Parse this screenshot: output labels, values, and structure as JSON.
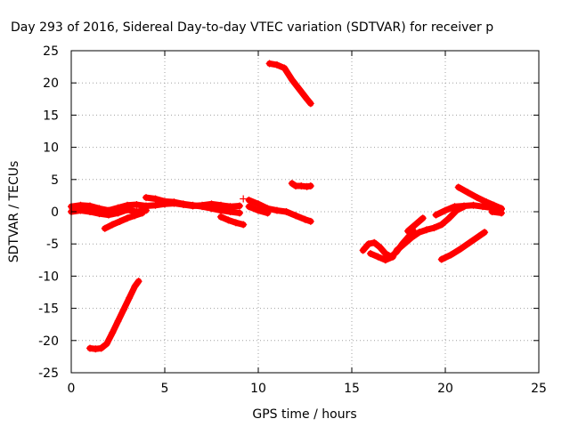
{
  "chart_data": {
    "type": "scatter",
    "title": "Day 293 of 2016, Sidereal Day-to-day VTEC variation (SDTVAR) for receiver p",
    "xlabel": "GPS time / hours",
    "ylabel": "SDTVAR / TECUs",
    "xlim": [
      0,
      25
    ],
    "ylim": [
      -25,
      25
    ],
    "xticks": [
      0,
      5,
      10,
      15,
      20,
      25
    ],
    "yticks": [
      25,
      20,
      15,
      10,
      5,
      0,
      -5,
      -10,
      -15,
      -20,
      -25
    ],
    "grid": true,
    "legend": "none",
    "series_color": "#ff0000",
    "marker": "+",
    "tracks": [
      {
        "name": "track-1",
        "x": [
          0.0,
          0.5,
          1.0,
          1.5,
          2.0,
          2.5,
          3.0,
          3.5,
          4.0,
          4.5,
          5.0,
          5.5,
          6.0,
          6.5,
          7.0,
          7.5,
          8.0,
          8.5,
          9.0
        ],
        "y": [
          0.8,
          1.0,
          0.9,
          0.5,
          0.2,
          0.6,
          1.0,
          1.1,
          0.9,
          1.0,
          1.2,
          1.3,
          1.1,
          0.9,
          1.0,
          1.2,
          1.0,
          0.8,
          0.9
        ]
      },
      {
        "name": "track-2",
        "x": [
          0.0,
          0.5,
          1.0,
          1.5,
          2.0,
          2.5,
          3.0,
          3.5,
          4.0
        ],
        "y": [
          0.0,
          0.2,
          0.0,
          -0.3,
          -0.5,
          -0.2,
          0.3,
          0.0,
          0.2
        ]
      },
      {
        "name": "track-3",
        "x": [
          1.0,
          1.3,
          1.6,
          1.9,
          2.2,
          2.5,
          2.8,
          3.1,
          3.4,
          3.6
        ],
        "y": [
          -21.2,
          -21.3,
          -21.2,
          -20.5,
          -18.8,
          -17.0,
          -15.2,
          -13.4,
          -11.6,
          -10.8
        ]
      },
      {
        "name": "track-4",
        "x": [
          1.8,
          2.2,
          2.6,
          3.0,
          3.4,
          3.8
        ],
        "y": [
          -2.6,
          -2.0,
          -1.5,
          -1.0,
          -0.6,
          -0.2
        ]
      },
      {
        "name": "track-5",
        "x": [
          4.0,
          4.5,
          5.0,
          5.5,
          6.0,
          6.5,
          7.0,
          7.5,
          8.0,
          8.5,
          9.0
        ],
        "y": [
          2.2,
          2.0,
          1.6,
          1.5,
          1.2,
          1.0,
          0.8,
          0.5,
          0.2,
          0.0,
          -0.2
        ]
      },
      {
        "name": "track-6",
        "x": [
          8.0,
          8.4,
          8.8,
          9.2
        ],
        "y": [
          -0.8,
          -1.3,
          -1.7,
          -2.0
        ]
      },
      {
        "name": "track-7",
        "x": [
          9.2
        ],
        "y": [
          2.0
        ]
      },
      {
        "name": "track-8",
        "x": [
          9.5,
          10.0,
          10.5,
          11.0,
          11.5,
          12.0,
          12.5,
          12.8
        ],
        "y": [
          1.8,
          1.2,
          0.5,
          0.2,
          0.0,
          -0.6,
          -1.2,
          -1.5
        ]
      },
      {
        "name": "track-9",
        "x": [
          9.5,
          10.0,
          10.5
        ],
        "y": [
          0.8,
          0.2,
          -0.2
        ]
      },
      {
        "name": "track-10",
        "x": [
          10.6,
          11.0,
          11.4,
          11.8,
          12.2,
          12.6,
          12.8
        ],
        "y": [
          23.0,
          22.8,
          22.3,
          20.5,
          19.0,
          17.5,
          16.8
        ]
      },
      {
        "name": "track-11",
        "x": [
          11.8,
          12.0,
          12.3,
          12.6,
          12.8
        ],
        "y": [
          4.4,
          4.0,
          4.0,
          3.9,
          4.0
        ]
      },
      {
        "name": "track-12",
        "x": [
          15.6,
          15.9,
          16.2,
          16.5,
          16.8,
          17.1,
          17.4,
          17.7,
          18.0,
          18.3
        ],
        "y": [
          -6.0,
          -5.0,
          -4.8,
          -5.5,
          -6.5,
          -7.0,
          -6.2,
          -5.0,
          -4.0,
          -3.0
        ]
      },
      {
        "name": "track-13",
        "x": [
          16.0,
          16.4,
          16.8,
          17.2
        ],
        "y": [
          -6.5,
          -7.0,
          -7.5,
          -7.0
        ]
      },
      {
        "name": "track-14",
        "x": [
          17.4,
          17.8,
          18.2,
          18.6,
          19.0,
          19.4,
          19.8,
          20.2,
          20.6,
          21.0
        ],
        "y": [
          -6.0,
          -5.0,
          -4.0,
          -3.2,
          -2.8,
          -2.5,
          -2.0,
          -1.0,
          0.2,
          0.8
        ]
      },
      {
        "name": "track-15",
        "x": [
          18.0,
          18.4,
          18.8
        ],
        "y": [
          -3.0,
          -2.0,
          -1.0
        ]
      },
      {
        "name": "track-16",
        "x": [
          19.5,
          20.0,
          20.5,
          21.0,
          21.5,
          22.0,
          22.5,
          23.0
        ],
        "y": [
          -0.5,
          0.2,
          0.8,
          0.9,
          1.0,
          0.8,
          0.6,
          0.4
        ]
      },
      {
        "name": "track-17",
        "x": [
          20.7,
          21.2,
          21.7,
          22.2,
          22.6,
          23.0
        ],
        "y": [
          3.8,
          3.0,
          2.2,
          1.5,
          1.0,
          0.5
        ]
      },
      {
        "name": "track-18",
        "x": [
          19.8,
          20.3,
          20.8,
          21.3,
          21.8,
          22.1
        ],
        "y": [
          -7.4,
          -6.7,
          -5.8,
          -4.8,
          -3.8,
          -3.2
        ]
      },
      {
        "name": "track-19",
        "x": [
          22.5,
          23.0
        ],
        "y": [
          0.0,
          -0.2
        ]
      }
    ]
  }
}
